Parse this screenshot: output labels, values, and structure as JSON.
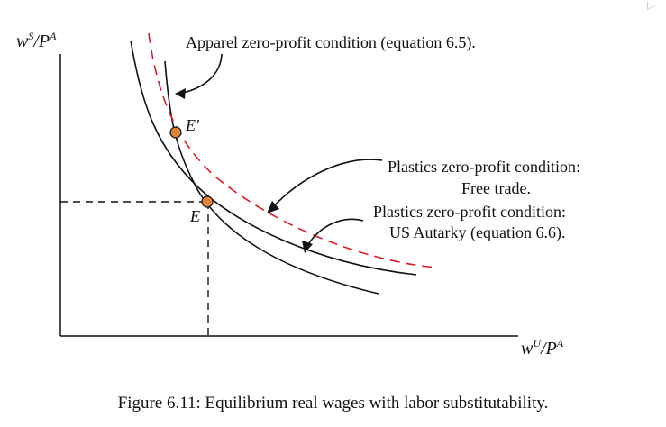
{
  "axes": {
    "y_label_main": "w",
    "y_label_sup": "S",
    "y_label_slash": "/P",
    "y_label_sup2": "A",
    "x_label_main": "w",
    "x_label_sup": "U",
    "x_label_slash": "/P",
    "x_label_sup2": "A"
  },
  "annotations": {
    "apparel": "Apparel zero-profit condition (equation 6.5).",
    "plastics_free_line1": "Plastics zero-profit condition:",
    "plastics_free_line2": "Free trade.",
    "plastics_autarky_line1": "Plastics zero-profit condition:",
    "plastics_autarky_line2": "US Autarky (equation 6.6)."
  },
  "points": {
    "e_prime_label": "E′",
    "e_label": "E"
  },
  "caption": "Figure 6.11: Equilibrium real wages with labor substitutability.",
  "colors": {
    "curve": "#111111",
    "dashed_curve": "#d31f2a",
    "point_fill": "#d9843b"
  }
}
